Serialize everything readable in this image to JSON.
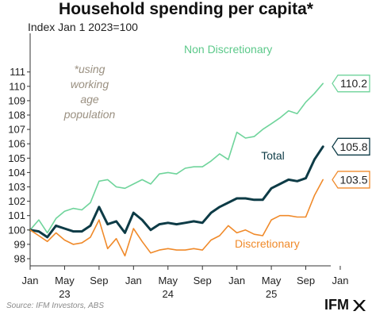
{
  "title": "Household spending per capita*",
  "subtitle": "Index Jan 1 2023=100",
  "source": "Source: IFM Investors, ABS",
  "logo_text": "IFM",
  "colors": {
    "non_discretionary": "#6fd49b",
    "total": "#0d3b46",
    "discretionary": "#f08a2a",
    "note": "#9a9081",
    "axis": "#333333"
  },
  "chart_data": {
    "type": "line",
    "annotation": "*using working age population",
    "annotation_lines": [
      "*using",
      "working",
      "age",
      "population"
    ],
    "x_tick_labels": [
      "Jan",
      "May",
      "Sep",
      "Jan",
      "May",
      "Sep",
      "Jan",
      "May",
      "Sep",
      "Jan"
    ],
    "x_year_labels": [
      "23",
      "24",
      "25"
    ],
    "ylim": [
      98,
      111
    ],
    "yticks": [
      98,
      99,
      100,
      101,
      102,
      103,
      104,
      105,
      106,
      107,
      108,
      109,
      110,
      111
    ],
    "series": [
      {
        "name": "Non Discretionary",
        "key": "non_discretionary",
        "end_label": "110.2",
        "values": [
          100.0,
          100.7,
          99.8,
          100.8,
          101.3,
          101.5,
          101.4,
          101.9,
          103.4,
          103.5,
          103.0,
          102.9,
          103.2,
          103.5,
          103.2,
          103.9,
          104.0,
          103.9,
          104.3,
          104.4,
          104.4,
          104.8,
          105.3,
          104.9,
          106.8,
          106.4,
          106.5,
          107.0,
          107.4,
          107.8,
          108.3,
          108.1,
          108.9,
          109.5,
          110.2
        ]
      },
      {
        "name": "Total",
        "key": "total",
        "end_label": "105.8",
        "values": [
          100.0,
          99.9,
          99.5,
          100.3,
          100.1,
          99.9,
          99.9,
          100.3,
          101.6,
          100.4,
          100.6,
          99.8,
          101.2,
          100.7,
          100.0,
          100.4,
          100.5,
          100.4,
          100.5,
          100.6,
          100.5,
          101.2,
          101.6,
          101.9,
          102.2,
          102.2,
          102.1,
          102.1,
          102.9,
          103.2,
          103.5,
          103.4,
          103.6,
          104.9,
          105.8
        ]
      },
      {
        "name": "Discretionary",
        "key": "discretionary",
        "end_label": "103.5",
        "values": [
          100.0,
          99.6,
          99.2,
          99.8,
          99.3,
          99.0,
          99.1,
          99.5,
          100.7,
          98.7,
          99.4,
          98.2,
          100.1,
          99.2,
          98.4,
          98.6,
          98.7,
          98.6,
          98.6,
          98.7,
          98.6,
          99.3,
          99.6,
          100.3,
          99.8,
          100.0,
          99.7,
          99.6,
          100.7,
          101.0,
          101.0,
          100.9,
          100.9,
          102.4,
          103.5
        ]
      }
    ]
  }
}
